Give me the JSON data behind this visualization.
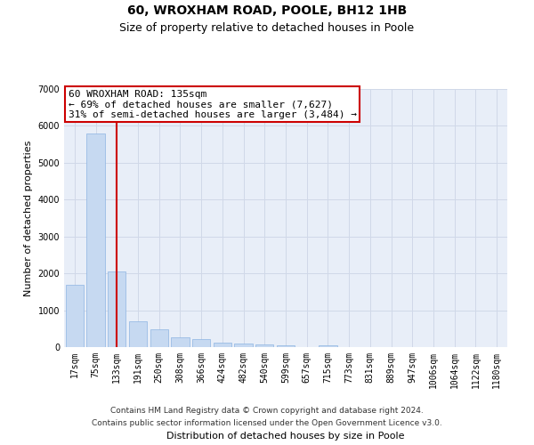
{
  "title": "60, WROXHAM ROAD, POOLE, BH12 1HB",
  "subtitle": "Size of property relative to detached houses in Poole",
  "xlabel": "Distribution of detached houses by size in Poole",
  "ylabel": "Number of detached properties",
  "categories": [
    "17sqm",
    "75sqm",
    "133sqm",
    "191sqm",
    "250sqm",
    "308sqm",
    "366sqm",
    "424sqm",
    "482sqm",
    "540sqm",
    "599sqm",
    "657sqm",
    "715sqm",
    "773sqm",
    "831sqm",
    "889sqm",
    "947sqm",
    "1006sqm",
    "1064sqm",
    "1122sqm",
    "1180sqm"
  ],
  "values": [
    1700,
    5800,
    2050,
    700,
    480,
    270,
    220,
    120,
    100,
    80,
    60,
    0,
    50,
    0,
    0,
    0,
    0,
    0,
    0,
    0,
    0
  ],
  "bar_color": "#c6d9f1",
  "bar_edge_color": "#8db4e2",
  "vline_x_index": 2,
  "vline_color": "#cc0000",
  "annotation_line1": "60 WROXHAM ROAD: 135sqm",
  "annotation_line2": "← 69% of detached houses are smaller (7,627)",
  "annotation_line3": "31% of semi-detached houses are larger (3,484) →",
  "annotation_box_color": "#ffffff",
  "annotation_box_edge": "#cc0000",
  "ylim": [
    0,
    7000
  ],
  "yticks": [
    0,
    1000,
    2000,
    3000,
    4000,
    5000,
    6000,
    7000
  ],
  "grid_color": "#d0d8e8",
  "background_color": "#e8eef8",
  "footer_line1": "Contains HM Land Registry data © Crown copyright and database right 2024.",
  "footer_line2": "Contains public sector information licensed under the Open Government Licence v3.0.",
  "title_fontsize": 10,
  "subtitle_fontsize": 9,
  "axis_label_fontsize": 8,
  "tick_fontsize": 7,
  "annotation_fontsize": 8,
  "footer_fontsize": 6.5
}
